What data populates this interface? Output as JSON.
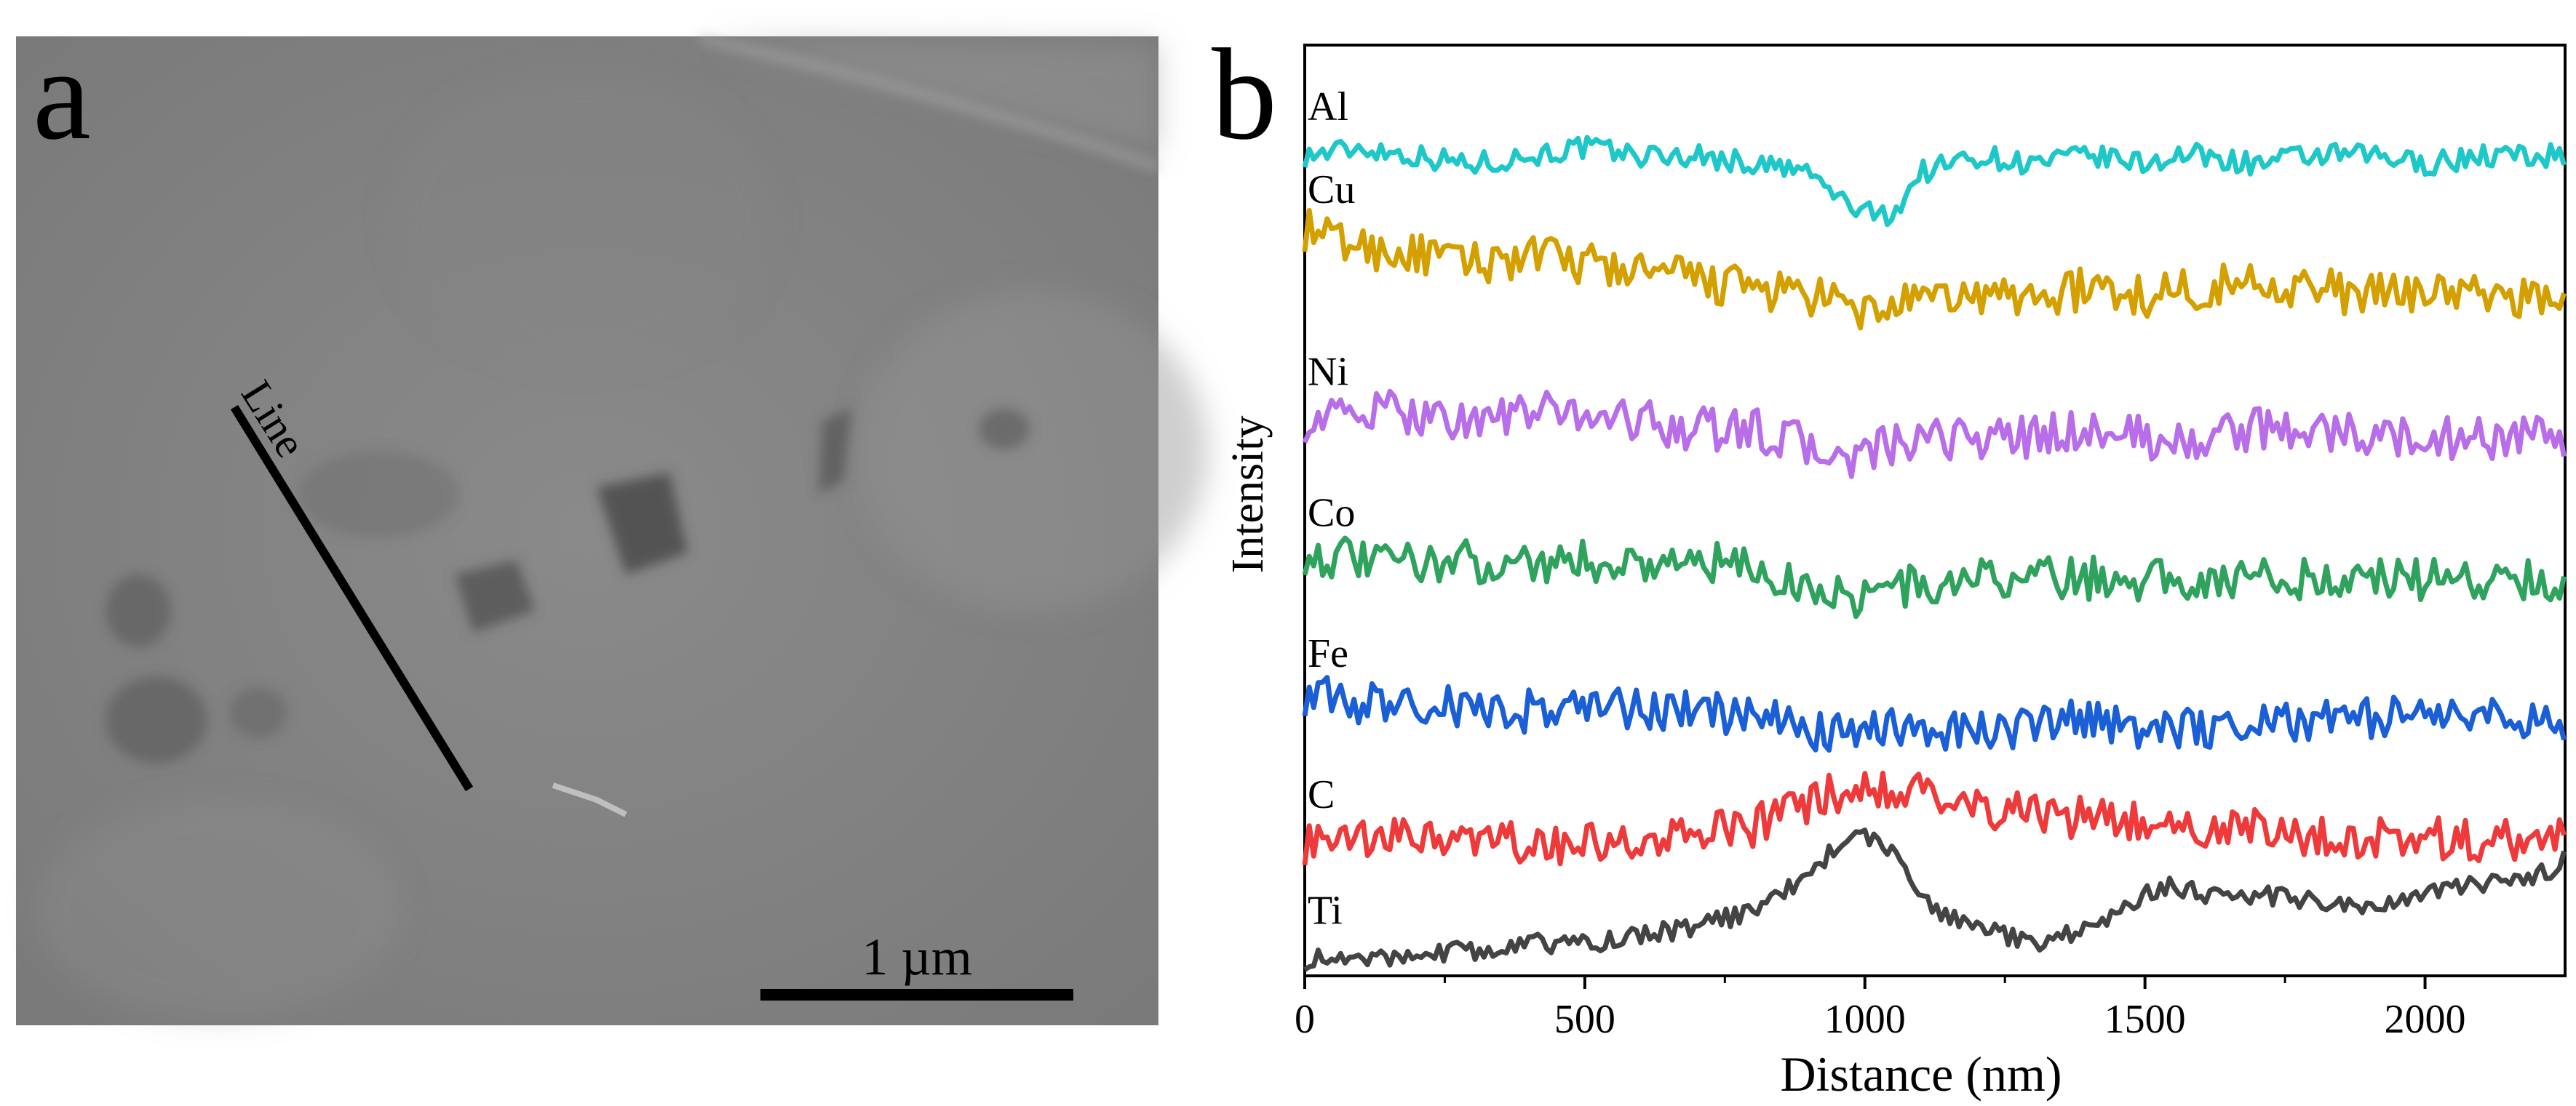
{
  "panel_a": {
    "letter": "a",
    "line_label": "Line",
    "scale_bar_label": "1 µm"
  },
  "panel_b": {
    "letter": "b"
  },
  "chart_data": {
    "type": "line",
    "title": "",
    "xlabel": "Distance (nm)",
    "ylabel": "Intensity",
    "xlim": [
      0,
      2250
    ],
    "xticks": [
      0,
      500,
      1000,
      1500,
      2000
    ],
    "y_tick_labels": false,
    "grid": false,
    "legend": "none (series labelled inline above each trace)",
    "stacked_offset": true,
    "x": [
      0,
      100,
      200,
      300,
      400,
      500,
      600,
      700,
      800,
      900,
      950,
      1000,
      1050,
      1100,
      1150,
      1200,
      1300,
      1400,
      1500,
      1550,
      1600,
      1700,
      1800,
      1900,
      2000,
      2100,
      2200,
      2250
    ],
    "series": [
      {
        "name": "Al",
        "color": "#1ec8c8",
        "baseline": 0.92,
        "values": [
          0.05,
          0.06,
          0.05,
          0.04,
          0.05,
          0.06,
          0.05,
          0.05,
          0.04,
          0.03,
          0.0,
          -0.02,
          -0.02,
          0.03,
          0.04,
          0.05,
          0.04,
          0.05,
          0.04,
          0.05,
          0.05,
          0.04,
          0.05,
          0.05,
          0.04,
          0.05,
          0.05,
          0.05
        ]
      },
      {
        "name": "Cu",
        "color": "#d4a000",
        "baseline": 0.76,
        "values": [
          0.12,
          0.1,
          0.09,
          0.08,
          0.09,
          0.08,
          0.07,
          0.06,
          0.05,
          0.04,
          0.03,
          0.02,
          0.03,
          0.03,
          0.04,
          0.04,
          0.04,
          0.05,
          0.04,
          0.05,
          0.05,
          0.06,
          0.05,
          0.04,
          0.05,
          0.04,
          0.04,
          0.04
        ]
      },
      {
        "name": "Ni",
        "color": "#b86ee8",
        "baseline": 0.58,
        "values": [
          0.07,
          0.08,
          0.08,
          0.07,
          0.08,
          0.08,
          0.07,
          0.06,
          0.06,
          0.04,
          0.02,
          0.03,
          0.04,
          0.04,
          0.05,
          0.05,
          0.05,
          0.06,
          0.05,
          0.04,
          0.05,
          0.06,
          0.06,
          0.05,
          0.05,
          0.05,
          0.05,
          0.05
        ]
      },
      {
        "name": "Co",
        "color": "#2fa35e",
        "baseline": 0.41,
        "values": [
          0.08,
          0.07,
          0.07,
          0.07,
          0.07,
          0.07,
          0.07,
          0.07,
          0.06,
          0.04,
          0.03,
          0.03,
          0.04,
          0.04,
          0.04,
          0.05,
          0.05,
          0.05,
          0.05,
          0.05,
          0.05,
          0.05,
          0.05,
          0.05,
          0.05,
          0.05,
          0.05,
          0.05
        ]
      },
      {
        "name": "Fe",
        "color": "#1a5fd6",
        "baseline": 0.24,
        "values": [
          0.08,
          0.07,
          0.07,
          0.06,
          0.06,
          0.07,
          0.06,
          0.06,
          0.05,
          0.04,
          0.03,
          0.03,
          0.04,
          0.04,
          0.04,
          0.04,
          0.04,
          0.05,
          0.04,
          0.04,
          0.04,
          0.05,
          0.05,
          0.05,
          0.06,
          0.05,
          0.05,
          0.05
        ]
      },
      {
        "name": "C",
        "color": "#ee3a3a",
        "baseline": 0.12,
        "values": [
          0.02,
          0.02,
          0.03,
          0.02,
          0.02,
          0.02,
          0.02,
          0.03,
          0.04,
          0.07,
          0.08,
          0.09,
          0.09,
          0.08,
          0.07,
          0.06,
          0.06,
          0.05,
          0.05,
          0.04,
          0.04,
          0.04,
          0.03,
          0.03,
          0.03,
          0.02,
          0.03,
          0.03
        ]
      },
      {
        "name": "Ti",
        "color": "#444444",
        "baseline": 0.0,
        "values": [
          0.0,
          0.0,
          0.01,
          0.01,
          0.02,
          0.02,
          0.03,
          0.04,
          0.06,
          0.1,
          0.14,
          0.15,
          0.13,
          0.08,
          0.05,
          0.04,
          0.02,
          0.04,
          0.08,
          0.09,
          0.08,
          0.08,
          0.07,
          0.06,
          0.08,
          0.09,
          0.1,
          0.12
        ]
      }
    ]
  }
}
